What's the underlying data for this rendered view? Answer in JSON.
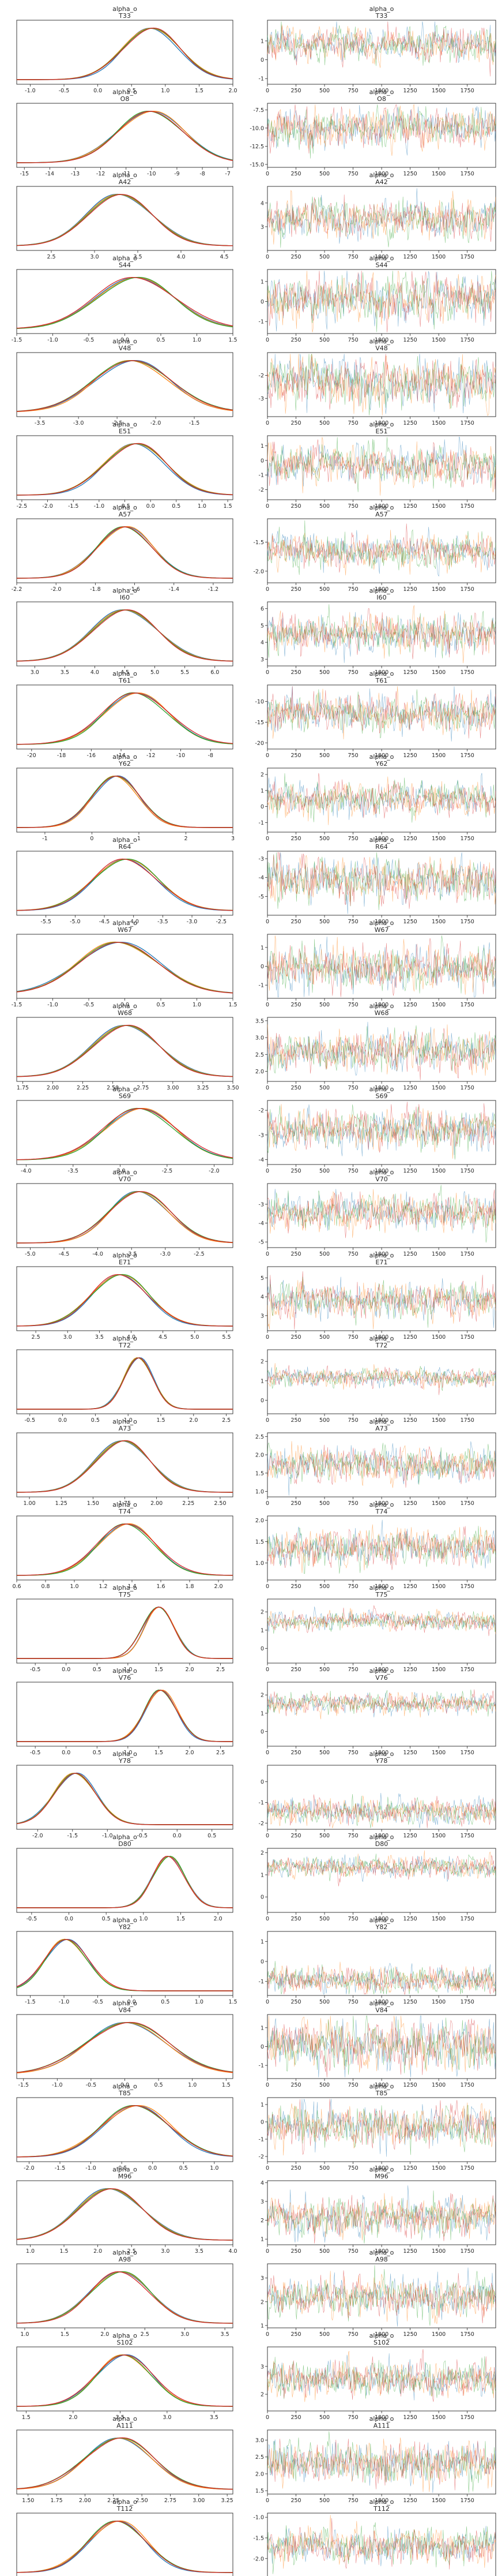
{
  "chart_data": {
    "type": "line",
    "layout": "trace-plot grid: density (left) and trace (right) per parameter",
    "variable": "alpha_o",
    "chains": 4,
    "chain_colors": [
      "#1f77b4",
      "#ff7f0e",
      "#2ca02c",
      "#d62728"
    ],
    "trace_xlim": [
      0,
      1999
    ],
    "trace_xticks": [
      "0",
      "250",
      "500",
      "750",
      "1000",
      "1250",
      "1500",
      "1750"
    ],
    "panels": [
      {
        "label": "T33",
        "mu": 0.8,
        "sd": 0.42,
        "kde_xticks": [
          "-1.0",
          "-0.5",
          "0.0",
          "0.5",
          "1.0",
          "1.5",
          "2.0"
        ],
        "kde_xlim": [
          -1.2,
          2.0
        ],
        "trace_yticks": [
          "-1",
          "0",
          "1"
        ],
        "trace_ylim": [
          -1.3,
          2.1
        ]
      },
      {
        "label": "O8",
        "mu": -10.0,
        "sd": 1.3,
        "kde_xticks": [
          "-15",
          "-14",
          "-13",
          "-12",
          "-11",
          "-10",
          "-9",
          "-8",
          "-7"
        ],
        "kde_xlim": [
          -15.3,
          -6.8
        ],
        "trace_yticks": [
          "-7.5",
          "-10.0",
          "-12.5",
          "-15.0"
        ],
        "trace_ylim": [
          -15.4,
          -6.6
        ]
      },
      {
        "label": "A42",
        "mu": 3.3,
        "sd": 0.38,
        "kde_xticks": [
          "2.5",
          "3.0",
          "3.5",
          "4.0",
          "4.5"
        ],
        "kde_xlim": [
          2.1,
          4.6
        ],
        "trace_yticks": [
          "3",
          "4"
        ],
        "trace_ylim": [
          2.0,
          4.7
        ]
      },
      {
        "label": "S44",
        "mu": 0.15,
        "sd": 0.55,
        "kde_xticks": [
          "-1.5",
          "-1.0",
          "-0.5",
          "0.0",
          "0.5",
          "1.0",
          "1.5"
        ],
        "kde_xlim": [
          -1.5,
          1.5
        ],
        "trace_yticks": [
          "-1",
          "0",
          "1"
        ],
        "trace_ylim": [
          -1.6,
          1.6
        ]
      },
      {
        "label": "V48",
        "mu": -2.3,
        "sd": 0.5,
        "kde_xticks": [
          "-3.5",
          "-3.0",
          "-2.5",
          "-2.0",
          "-1.5"
        ],
        "kde_xlim": [
          -3.8,
          -1.0
        ],
        "trace_yticks": [
          "-2",
          "-3"
        ],
        "trace_ylim": [
          -3.8,
          -1.0
        ]
      },
      {
        "label": "E51",
        "mu": -0.3,
        "sd": 0.6,
        "kde_xticks": [
          "-2.5",
          "-2.0",
          "-1.5",
          "-1.0",
          "-0.5",
          "0.0",
          "0.5",
          "1.0",
          "1.5"
        ],
        "kde_xlim": [
          -2.6,
          1.6
        ],
        "trace_yticks": [
          "1",
          "0",
          "-1",
          "-2"
        ],
        "trace_ylim": [
          -2.7,
          1.7
        ]
      },
      {
        "label": "A57",
        "mu": -1.65,
        "sd": 0.14,
        "kde_xticks": [
          "-2.2",
          "-2.0",
          "-1.8",
          "-1.6",
          "-1.4",
          "-1.2"
        ],
        "kde_xlim": [
          -2.2,
          -1.1
        ],
        "trace_yticks": [
          "-1.5",
          "-2.0"
        ],
        "trace_ylim": [
          -2.2,
          -1.1
        ]
      },
      {
        "label": "I60",
        "mu": 4.5,
        "sd": 0.55,
        "kde_xticks": [
          "3.0",
          "3.5",
          "4.0",
          "4.5",
          "5.0",
          "5.5",
          "6.0"
        ],
        "kde_xlim": [
          2.7,
          6.3
        ],
        "trace_yticks": [
          "6",
          "5",
          "4",
          "3"
        ],
        "trace_ylim": [
          2.6,
          6.4
        ]
      },
      {
        "label": "T61",
        "mu": -13.0,
        "sd": 2.2,
        "kde_xticks": [
          "-20",
          "-18",
          "-16",
          "-14",
          "-12",
          "-10",
          "-8"
        ],
        "kde_xlim": [
          -21,
          -6.5
        ],
        "trace_yticks": [
          "-10",
          "-15",
          "-20"
        ],
        "trace_ylim": [
          -21.5,
          -6.0
        ]
      },
      {
        "label": "Y62",
        "mu": 0.5,
        "sd": 0.5,
        "kde_xticks": [
          "-1",
          "0",
          "1",
          "2",
          "3"
        ],
        "kde_xlim": [
          -1.6,
          3.0
        ],
        "trace_yticks": [
          "2",
          "1",
          "0",
          "-1"
        ],
        "trace_ylim": [
          -1.6,
          2.4
        ]
      },
      {
        "label": "R64",
        "mu": -4.15,
        "sd": 0.55,
        "kde_xticks": [
          "-5.5",
          "-5.0",
          "-4.5",
          "-4.0",
          "-3.5",
          "-3.0",
          "-2.5"
        ],
        "kde_xlim": [
          -6.0,
          -2.3
        ],
        "trace_yticks": [
          "-3",
          "-4",
          "-5"
        ],
        "trace_ylim": [
          -6.0,
          -2.6
        ]
      },
      {
        "label": "W67",
        "mu": -0.1,
        "sd": 0.55,
        "kde_xticks": [
          "-1.5",
          "-1.0",
          "-0.5",
          "0.0",
          "0.5",
          "1.0",
          "1.5"
        ],
        "kde_xlim": [
          -1.5,
          1.5
        ],
        "trace_yticks": [
          "1",
          "0",
          "-1"
        ],
        "trace_ylim": [
          -1.7,
          1.7
        ]
      },
      {
        "label": "W68",
        "mu": 2.6,
        "sd": 0.28,
        "kde_xticks": [
          "1.75",
          "2.00",
          "2.25",
          "2.50",
          "2.75",
          "3.00",
          "3.25",
          "3.50"
        ],
        "kde_xlim": [
          1.7,
          3.5
        ],
        "trace_yticks": [
          "3.5",
          "3.0",
          "2.5",
          "2.0"
        ],
        "trace_ylim": [
          1.7,
          3.6
        ]
      },
      {
        "label": "S69",
        "mu": -2.8,
        "sd": 0.38,
        "kde_xticks": [
          "-4.0",
          "-3.5",
          "-3.0",
          "-2.5",
          "-2.0"
        ],
        "kde_xlim": [
          -4.1,
          -1.8
        ],
        "trace_yticks": [
          "-2",
          "-3",
          "-4"
        ],
        "trace_ylim": [
          -4.2,
          -1.6
        ]
      },
      {
        "label": "V70",
        "mu": -3.4,
        "sd": 0.45,
        "kde_xticks": [
          "-5.0",
          "-4.5",
          "-4.0",
          "-3.5",
          "-3.0",
          "-2.5"
        ],
        "kde_xlim": [
          -5.2,
          -2.0
        ],
        "trace_yticks": [
          "-3",
          "-4",
          "-5"
        ],
        "trace_ylim": [
          -5.3,
          -1.9
        ]
      },
      {
        "label": "E71",
        "mu": 3.8,
        "sd": 0.45,
        "kde_xticks": [
          "2.5",
          "3.0",
          "3.5",
          "4.0",
          "4.5",
          "5.0",
          "5.5"
        ],
        "kde_xlim": [
          2.2,
          5.6
        ],
        "trace_yticks": [
          "5",
          "4",
          "3"
        ],
        "trace_ylim": [
          2.2,
          5.6
        ]
      },
      {
        "label": "T72",
        "mu": 1.15,
        "sd": 0.22,
        "kde_xticks": [
          "-0.5",
          "0.0",
          "0.5",
          "1.0",
          "1.5",
          "2.0",
          "2.5"
        ],
        "kde_xlim": [
          -0.7,
          2.6
        ],
        "trace_yticks": [
          "2",
          "1",
          "0"
        ],
        "trace_ylim": [
          -0.7,
          2.6
        ]
      },
      {
        "label": "A73",
        "mu": 1.72,
        "sd": 0.22,
        "kde_xticks": [
          "1.00",
          "1.25",
          "1.50",
          "1.75",
          "2.00",
          "2.25",
          "2.50"
        ],
        "kde_xlim": [
          0.9,
          2.6
        ],
        "trace_yticks": [
          "2.5",
          "2.0",
          "1.5",
          "1.0"
        ],
        "trace_ylim": [
          0.85,
          2.6
        ]
      },
      {
        "label": "T74",
        "mu": 1.35,
        "sd": 0.2,
        "kde_xticks": [
          "0.6",
          "0.8",
          "1.0",
          "1.2",
          "1.4",
          "1.6",
          "1.8",
          "2.0"
        ],
        "kde_xlim": [
          0.6,
          2.1
        ],
        "trace_yticks": [
          "2.0",
          "1.5",
          "1.0"
        ],
        "trace_ylim": [
          0.6,
          2.1
        ]
      },
      {
        "label": "T75",
        "mu": 1.5,
        "sd": 0.25,
        "kde_xticks": [
          "-0.5",
          "0.0",
          "0.5",
          "1.0",
          "1.5",
          "2.0",
          "2.5"
        ],
        "kde_xlim": [
          -0.8,
          2.7
        ],
        "trace_yticks": [
          "2",
          "1",
          "0"
        ],
        "trace_ylim": [
          -0.8,
          2.7
        ]
      },
      {
        "label": "V76",
        "mu": 1.55,
        "sd": 0.26,
        "kde_xticks": [
          "-0.5",
          "0.0",
          "0.5",
          "1.0",
          "1.5",
          "2.0",
          "2.5"
        ],
        "kde_xlim": [
          -0.8,
          2.7
        ],
        "trace_yticks": [
          "2",
          "1",
          "0"
        ],
        "trace_ylim": [
          -0.8,
          2.7
        ]
      },
      {
        "label": "Y78",
        "mu": -1.45,
        "sd": 0.3,
        "kde_xticks": [
          "-2.0",
          "-1.5",
          "-1.0",
          "-0.5",
          "0.0",
          "0.5"
        ],
        "kde_xlim": [
          -2.3,
          0.8
        ],
        "trace_yticks": [
          "0",
          "-1",
          "-2"
        ],
        "trace_ylim": [
          -2.3,
          0.8
        ]
      },
      {
        "label": "D80",
        "mu": 1.35,
        "sd": 0.22,
        "kde_xticks": [
          "-0.5",
          "0.0",
          "0.5",
          "1.0",
          "1.5",
          "2.0"
        ],
        "kde_xlim": [
          -0.7,
          2.2
        ],
        "trace_yticks": [
          "2",
          "1",
          "0"
        ],
        "trace_ylim": [
          -0.7,
          2.2
        ]
      },
      {
        "label": "Y82",
        "mu": -0.95,
        "sd": 0.32,
        "kde_xticks": [
          "-1.5",
          "-1.0",
          "-0.5",
          "0.0",
          "0.5",
          "1.0",
          "1.5"
        ],
        "kde_xlim": [
          -1.7,
          1.5
        ],
        "trace_yticks": [
          "1",
          "0",
          "-1"
        ],
        "trace_ylim": [
          -1.7,
          1.5
        ]
      },
      {
        "label": "V84",
        "mu": 0.05,
        "sd": 0.6,
        "kde_xticks": [
          "-1.5",
          "-1.0",
          "-0.5",
          "0.0",
          "0.5",
          "1.0",
          "1.5"
        ],
        "kde_xlim": [
          -1.6,
          1.6
        ],
        "trace_yticks": [
          "1",
          "0",
          "-1"
        ],
        "trace_ylim": [
          -1.7,
          1.7
        ]
      },
      {
        "label": "T85",
        "mu": -0.25,
        "sd": 0.55,
        "kde_xticks": [
          "-2.0",
          "-1.5",
          "-1.0",
          "-0.5",
          "0.0",
          "0.5",
          "1.0"
        ],
        "kde_xlim": [
          -2.2,
          1.3
        ],
        "trace_yticks": [
          "1",
          "0",
          "-1",
          "-2"
        ],
        "trace_ylim": [
          -2.3,
          1.4
        ]
      },
      {
        "label": "M96",
        "mu": 2.2,
        "sd": 0.48,
        "kde_xticks": [
          "1.0",
          "1.5",
          "2.0",
          "2.5",
          "3.0",
          "3.5",
          "4.0"
        ],
        "kde_xlim": [
          0.8,
          4.0
        ],
        "trace_yticks": [
          "4",
          "3",
          "2",
          "1"
        ],
        "trace_ylim": [
          0.7,
          4.1
        ]
      },
      {
        "label": "A98",
        "mu": 2.2,
        "sd": 0.38,
        "kde_xticks": [
          "1.0",
          "1.5",
          "2.0",
          "2.5",
          "3.0",
          "3.5"
        ],
        "kde_xlim": [
          0.9,
          3.6
        ],
        "trace_yticks": [
          "3",
          "2",
          "1"
        ],
        "trace_ylim": [
          0.9,
          3.6
        ]
      },
      {
        "label": "S102",
        "mu": 2.55,
        "sd": 0.3,
        "kde_xticks": [
          "1.5",
          "2.0",
          "2.5",
          "3.0",
          "3.5"
        ],
        "kde_xlim": [
          1.4,
          3.7
        ],
        "trace_yticks": [
          "3",
          "2"
        ],
        "trace_ylim": [
          1.4,
          3.7
        ]
      },
      {
        "label": "A111",
        "mu": 2.3,
        "sd": 0.3,
        "kde_xticks": [
          "1.50",
          "1.75",
          "2.00",
          "2.25",
          "2.50",
          "2.75",
          "3.00",
          "3.25"
        ],
        "kde_xlim": [
          1.4,
          3.3
        ],
        "trace_yticks": [
          "3.0",
          "2.5",
          "2.0",
          "1.5"
        ],
        "trace_ylim": [
          1.4,
          3.3
        ]
      },
      {
        "label": "T112",
        "mu": -1.7,
        "sd": 0.2,
        "kde_xticks": [
          "-2.4",
          "-2.2",
          "-2.0",
          "-1.8",
          "-1.6",
          "-1.4",
          "-1.2",
          "-1.0"
        ],
        "kde_xlim": [
          -2.4,
          -0.9
        ],
        "trace_yticks": [
          "-1.0",
          "-1.5",
          "-2.0"
        ],
        "trace_ylim": [
          -2.45,
          -0.9
        ]
      }
    ]
  }
}
